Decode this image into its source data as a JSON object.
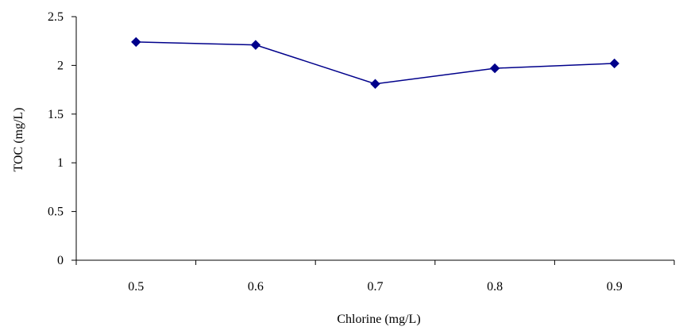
{
  "chart_data": {
    "type": "line",
    "title": "",
    "xlabel": "Chlorine (mg/L)",
    "ylabel": "TOC  (mg/L)",
    "categories": [
      "0.5",
      "0.6",
      "0.7",
      "0.8",
      "0.9"
    ],
    "series": [
      {
        "values": [
          2.24,
          2.21,
          1.81,
          1.97,
          2.02
        ],
        "color": "#00008B",
        "marker": "diamond"
      }
    ],
    "ylim": [
      0,
      2.5
    ],
    "yticks": [
      "0",
      "0.5",
      "1",
      "1.5",
      "2",
      "2.5"
    ],
    "grid": false,
    "legend": "none"
  }
}
